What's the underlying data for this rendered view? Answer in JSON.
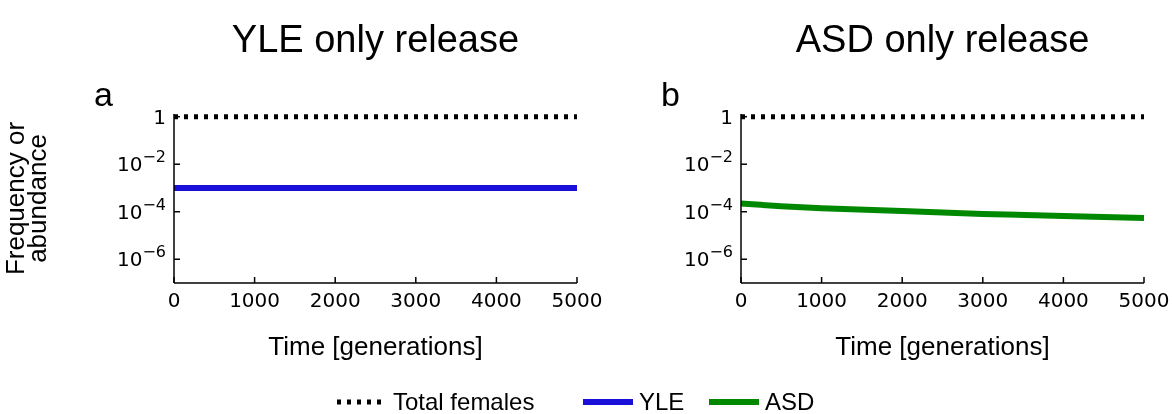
{
  "chart_data": [
    {
      "type": "line",
      "title": "YLE only release",
      "xlabel": "Time [generations]",
      "ylabel": "Frequency or abundance",
      "annotations": [
        "a"
      ],
      "log": "y",
      "grid": false,
      "legend": "bottom",
      "marker": "none",
      "xlim": [
        0,
        5000
      ],
      "xticks": [
        0,
        1000,
        2000,
        3000,
        4000,
        5000
      ],
      "ylim": [
        1e-07,
        1.3
      ],
      "yticks": [
        {
          "value": 1,
          "label": "1"
        },
        {
          "value": 0.01,
          "label": "10$^{−2}$"
        },
        {
          "value": 0.0001,
          "label": "10$^{−4}$"
        },
        {
          "value": 1e-06,
          "label": "10$^{−6}$"
        }
      ],
      "x": [
        0,
        5000
      ],
      "series": [
        {
          "name": "Total females",
          "color": "#000000",
          "line_style": "dotted",
          "values": [
            1,
            1
          ]
        },
        {
          "name": "YLE",
          "color": "#1a0fd8",
          "line_style": "solid",
          "values": [
            0.001,
            0.001
          ]
        }
      ]
    },
    {
      "type": "line",
      "title": "ASD only release",
      "xlabel": "Time [generations]",
      "annotations": [
        "b"
      ],
      "log": "y",
      "grid": false,
      "legend": "bottom",
      "marker": "none",
      "xlim": [
        0,
        5000
      ],
      "xticks": [
        0,
        1000,
        2000,
        3000,
        4000,
        5000
      ],
      "ylim": [
        1e-07,
        1.3
      ],
      "yticks": [
        {
          "value": 1,
          "label": "1"
        },
        {
          "value": 0.01,
          "label": "10$^{−2}$"
        },
        {
          "value": 0.0001,
          "label": "10$^{−4}$"
        },
        {
          "value": 1e-06,
          "label": "10$^{−6}$"
        }
      ],
      "x": [
        0,
        500,
        1000,
        2000,
        3000,
        4000,
        5000
      ],
      "series": [
        {
          "name": "Total females",
          "color": "#000000",
          "line_style": "dotted",
          "values": [
            1,
            1,
            1,
            1,
            1,
            1,
            1
          ]
        },
        {
          "name": "ASD",
          "color": "#008800",
          "line_style": "solid",
          "values": [
            0.00022,
            0.00017,
            0.00014,
            0.000107,
            8.1e-05,
            6.6e-05,
            5.5e-05
          ]
        }
      ]
    }
  ]
}
